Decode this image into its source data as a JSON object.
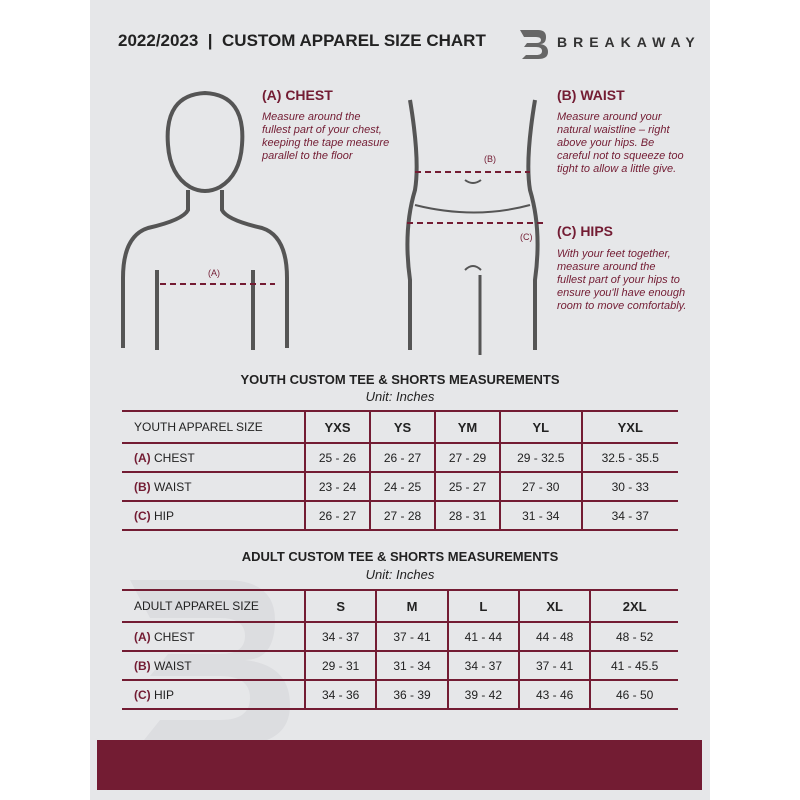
{
  "header": {
    "title": "2022/2023  |  CUSTOM APPAREL SIZE CHART",
    "brand": "BREAKAWAY",
    "logo_letter": "B"
  },
  "chest": {
    "heading": "(A) CHEST",
    "text": "Measure around the fullest part of your chest, keeping the tape measure parallel to the floor",
    "marker": "(A)"
  },
  "waist": {
    "heading": "(B) WAIST",
    "text": "Measure around your natural waistline – right above your hips. Be careful not to squeeze too tight to allow a little give.",
    "marker": "(B)"
  },
  "hips": {
    "heading": "(C) HIPS",
    "text": "With your feet together, measure around the fullest part of your hips to ensure you'll have enough room to move comfortably.",
    "marker": "(C)"
  },
  "youth": {
    "title": "YOUTH CUSTOM TEE & SHORTS MEASUREMENTS",
    "unit": "Unit: Inches",
    "header": [
      "YOUTH APPAREL SIZE",
      "YXS",
      "YS",
      "YM",
      "YL",
      "YXL"
    ],
    "rows": [
      {
        "code": "(A)",
        "name": "CHEST",
        "values": [
          "25 - 26",
          "26 - 27",
          "27 - 29",
          "29 - 32.5",
          "32.5 - 35.5"
        ]
      },
      {
        "code": "(B)",
        "name": "WAIST",
        "values": [
          "23 - 24",
          "24 - 25",
          "25 - 27",
          "27 - 30",
          "30 - 33"
        ]
      },
      {
        "code": "(C)",
        "name": "HIP",
        "values": [
          "26 - 27",
          "27 - 28",
          "28 - 31",
          "31 - 34",
          "34 - 37"
        ]
      }
    ]
  },
  "adult": {
    "title": "ADULT CUSTOM TEE & SHORTS MEASUREMENTS",
    "unit": "Unit: Inches",
    "header": [
      "ADULT APPAREL SIZE",
      "S",
      "M",
      "L",
      "XL",
      "2XL"
    ],
    "rows": [
      {
        "code": "(A)",
        "name": "CHEST",
        "values": [
          "34 - 37",
          "37 - 41",
          "41 - 44",
          "44 - 48",
          "48 - 52"
        ]
      },
      {
        "code": "(B)",
        "name": "WAIST",
        "values": [
          "29 - 31",
          "31 - 34",
          "34 - 37",
          "37 - 41",
          "41 - 45.5"
        ]
      },
      {
        "code": "(C)",
        "name": "HIP",
        "values": [
          "34 - 36",
          "36 - 39",
          "39 - 42",
          "43 - 46",
          "46 - 50"
        ]
      }
    ]
  },
  "colors": {
    "accent": "#731c33",
    "background": "#e6e7e9"
  }
}
